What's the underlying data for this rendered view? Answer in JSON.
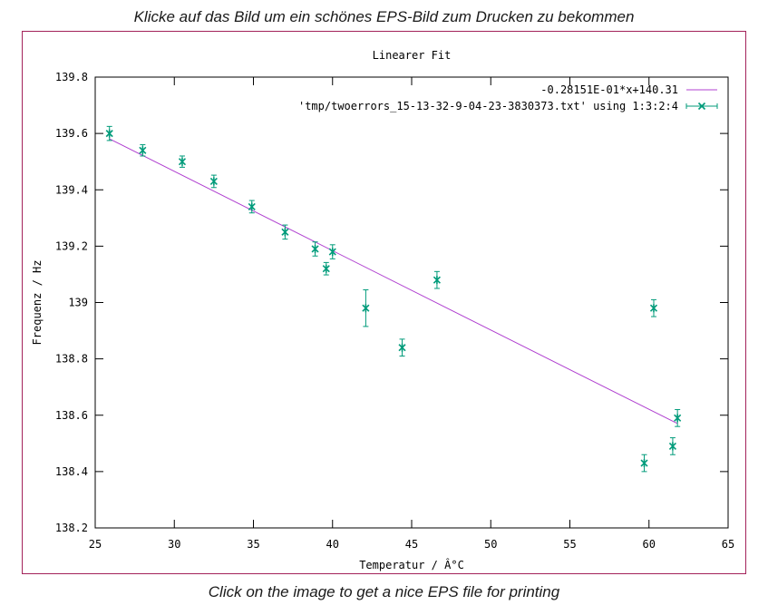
{
  "captions": {
    "top": "Klicke auf das Bild um ein schönes EPS-Bild zum Drucken zu bekommen",
    "bottom": "Click on the image to get a nice EPS file for printing"
  },
  "colors": {
    "frame": "#a3225a",
    "fit": "#b040d0",
    "data": "#009b7a"
  },
  "chart_data": {
    "type": "scatter",
    "title": "Linearer Fit",
    "xlabel": "Temperatur / Â°C",
    "ylabel": "Frequenz / Hz",
    "xlim": [
      25,
      65
    ],
    "ylim": [
      138.2,
      139.8
    ],
    "xticks": [
      "25",
      "30",
      "35",
      "40",
      "45",
      "50",
      "55",
      "60",
      "65"
    ],
    "yticks": [
      "138.2",
      "138.4",
      "138.6",
      "138.8",
      "139",
      "139.2",
      "139.4",
      "139.6",
      "139.8"
    ],
    "legend_position": "top-right",
    "fit": {
      "name": "-0.28151E-01*x+140.31",
      "slope": -0.028151,
      "intercept": 140.31,
      "x_range": [
        25.9,
        61.8
      ]
    },
    "series": [
      {
        "name": "'tmp/twoerrors_15-13-32-9-04-23-3830373.txt' using 1:3:2:4",
        "points": [
          {
            "x": 25.9,
            "y": 139.6,
            "err": 0.025
          },
          {
            "x": 28.0,
            "y": 139.54,
            "err": 0.02
          },
          {
            "x": 30.5,
            "y": 139.5,
            "err": 0.02
          },
          {
            "x": 32.5,
            "y": 139.43,
            "err": 0.022
          },
          {
            "x": 34.9,
            "y": 139.34,
            "err": 0.022
          },
          {
            "x": 37.0,
            "y": 139.25,
            "err": 0.025
          },
          {
            "x": 38.9,
            "y": 139.19,
            "err": 0.025
          },
          {
            "x": 39.6,
            "y": 139.12,
            "err": 0.022
          },
          {
            "x": 40.0,
            "y": 139.18,
            "err": 0.025
          },
          {
            "x": 42.1,
            "y": 138.98,
            "err": 0.065
          },
          {
            "x": 44.4,
            "y": 138.84,
            "err": 0.03
          },
          {
            "x": 46.6,
            "y": 139.08,
            "err": 0.03
          },
          {
            "x": 59.7,
            "y": 138.43,
            "err": 0.03
          },
          {
            "x": 60.3,
            "y": 138.98,
            "err": 0.03
          },
          {
            "x": 61.5,
            "y": 138.49,
            "err": 0.03
          },
          {
            "x": 61.8,
            "y": 138.59,
            "err": 0.03
          }
        ]
      }
    ]
  }
}
